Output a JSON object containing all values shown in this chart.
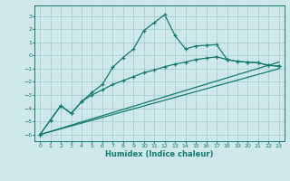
{
  "xlabel": "Humidex (Indice chaleur)",
  "bg_color": "#cce8e8",
  "grid_color": "#aacfcf",
  "line_color": "#1a7a6e",
  "xlim": [
    -0.5,
    23.5
  ],
  "ylim": [
    -6.5,
    3.8
  ],
  "xticks": [
    0,
    1,
    2,
    3,
    4,
    5,
    6,
    7,
    8,
    9,
    10,
    11,
    12,
    13,
    14,
    15,
    16,
    17,
    18,
    19,
    20,
    21,
    22,
    23
  ],
  "yticks": [
    -6,
    -5,
    -4,
    -3,
    -2,
    -1,
    0,
    1,
    2,
    3
  ],
  "series1_x": [
    0,
    1,
    2,
    3,
    4,
    5,
    6,
    7,
    8,
    9,
    10,
    11,
    12,
    13,
    14,
    15,
    16,
    17,
    18,
    19,
    20,
    21,
    22,
    23
  ],
  "series1_y": [
    -6.0,
    -4.9,
    -3.8,
    -4.4,
    -3.5,
    -2.8,
    -2.2,
    -0.9,
    -0.15,
    0.5,
    1.9,
    2.5,
    3.1,
    1.5,
    0.5,
    0.72,
    0.78,
    0.82,
    -0.3,
    -0.45,
    -0.5,
    -0.55,
    -0.75,
    -0.8
  ],
  "series2_x": [
    0,
    1,
    2,
    3,
    4,
    5,
    6,
    7,
    8,
    9,
    10,
    11,
    12,
    13,
    14,
    15,
    16,
    17,
    18,
    19,
    20,
    21,
    22,
    23
  ],
  "series2_y": [
    -6.0,
    -4.9,
    -3.8,
    -4.4,
    -3.5,
    -3.0,
    -2.6,
    -2.2,
    -1.9,
    -1.6,
    -1.3,
    -1.1,
    -0.85,
    -0.65,
    -0.5,
    -0.3,
    -0.2,
    -0.1,
    -0.3,
    -0.45,
    -0.5,
    -0.55,
    -0.75,
    -0.8
  ],
  "series3_x": [
    0,
    23
  ],
  "series3_y": [
    -6.0,
    -1.0
  ],
  "series4_x": [
    0,
    23
  ],
  "series4_y": [
    -6.0,
    -0.5
  ]
}
